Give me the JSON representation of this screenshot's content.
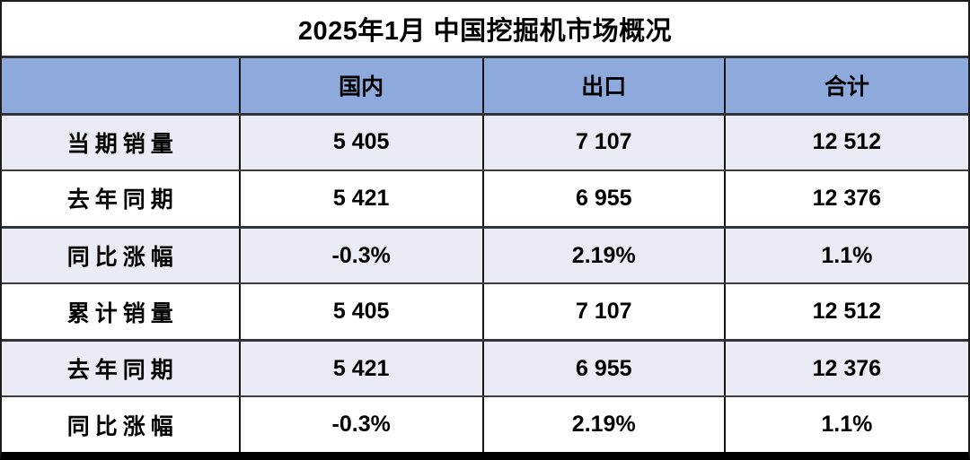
{
  "chart_data": {
    "type": "table",
    "title": "2025年1月 中国挖掘机市场概况",
    "columns": [
      "",
      "国内",
      "出口",
      "合计"
    ],
    "rows": [
      {
        "label": "当期销量",
        "values": [
          "5 405",
          "7 107",
          "12 512"
        ]
      },
      {
        "label": "去年同期",
        "values": [
          "5 421",
          "6 955",
          "12 376"
        ]
      },
      {
        "label": "同比涨幅",
        "values": [
          "-0.3%",
          "2.19%",
          "1.1%"
        ]
      },
      {
        "label": "累计销量",
        "values": [
          "5 405",
          "7 107",
          "12 512"
        ]
      },
      {
        "label": "去年同期",
        "values": [
          "5 421",
          "6 955",
          "12 376"
        ]
      },
      {
        "label": "同比涨幅",
        "values": [
          "-0.3%",
          "2.19%",
          "1.1%"
        ]
      }
    ],
    "layout": {
      "grid": "on",
      "header_position": "top",
      "unit": "台"
    }
  },
  "colors": {
    "header_bg": "#8EA9DC",
    "row_alt_bg": "#E9EBF5",
    "row_bg": "#FFFFFF",
    "border": "#141414",
    "bottom_border": "#000000",
    "text": "#000000"
  }
}
